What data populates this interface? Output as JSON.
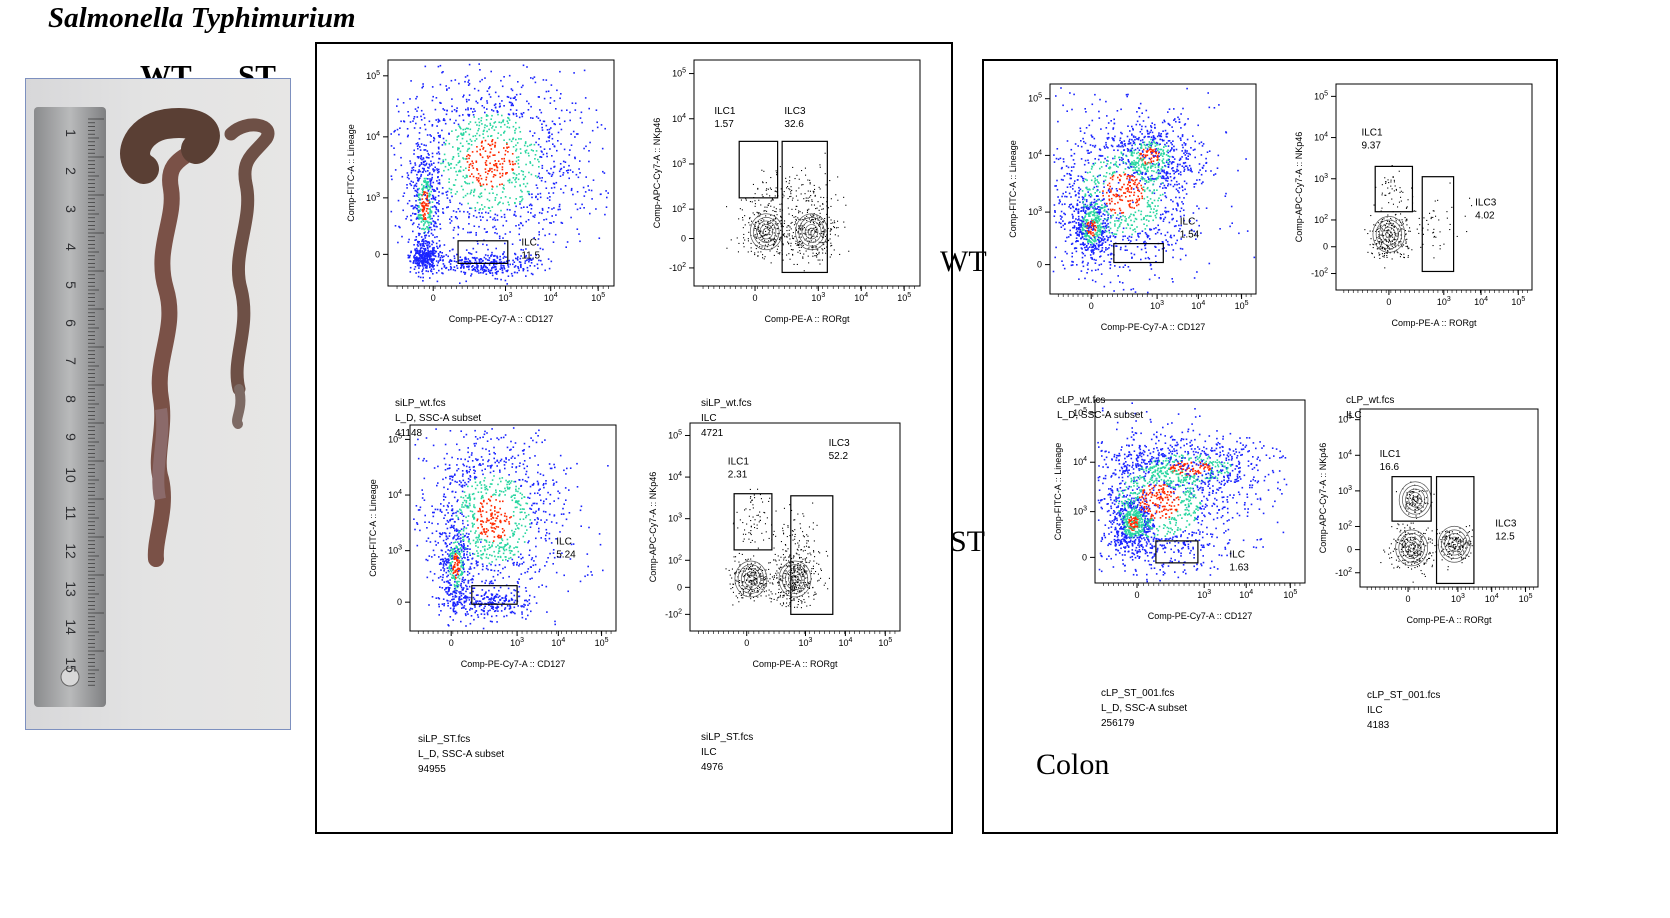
{
  "title": "Salmonella Typhimurium",
  "photo": {
    "label_wt": "WT",
    "label_st": "ST",
    "ruler_numbers": [
      "1",
      "2",
      "3",
      "4",
      "5",
      "6",
      "7",
      "8",
      "9",
      "10",
      "11",
      "12",
      "13",
      "14",
      "15"
    ]
  },
  "row_labels": {
    "wt": "WT",
    "st": "ST"
  },
  "colon_label": "Colon",
  "colors": {
    "density_low": "#1a24ff",
    "density_mid": "#29d6a0",
    "density_high": "#ff2a00",
    "frame": "#000000",
    "photo_border": "#7d90bf"
  },
  "ticks": {
    "lineage_y": [
      "10^5",
      "10^4",
      "10^3",
      "0"
    ],
    "nkp46_y": [
      "10^5",
      "10^4",
      "10^3",
      "10^2",
      "0",
      "-10^2"
    ],
    "x": [
      "0",
      "10^3",
      "10^4",
      "10^5"
    ]
  },
  "plots": [
    {
      "id": "si-wt-lin",
      "ylabel": "Comp-FITC-A :: Lineage",
      "xlabel": "Comp-PE-Cy7-A :: CD127",
      "gates": [
        {
          "name": "ILC",
          "value": "11.5"
        }
      ],
      "info": [
        "siLP_wt.fcs",
        "L_D, SSC-A subset",
        "41148"
      ]
    },
    {
      "id": "si-wt-nkp",
      "ylabel": "Comp-APC-Cy7-A :: NKp46",
      "xlabel": "Comp-PE-A :: RORgt",
      "gates": [
        {
          "name": "ILC1",
          "value": "1.57"
        },
        {
          "name": "ILC3",
          "value": "32.6"
        }
      ],
      "info": [
        "siLP_wt.fcs",
        "ILC",
        "4721"
      ]
    },
    {
      "id": "si-st-lin",
      "ylabel": "Comp-FITC-A :: Lineage",
      "xlabel": "Comp-PE-Cy7-A :: CD127",
      "gates": [
        {
          "name": "ILC",
          "value": "5.24"
        }
      ],
      "info": [
        "siLP_ST.fcs",
        "L_D, SSC-A subset",
        "94955"
      ]
    },
    {
      "id": "si-st-nkp",
      "ylabel": "Comp-APC-Cy7-A :: NKp46",
      "xlabel": "Comp-PE-A :: RORgt",
      "gates": [
        {
          "name": "ILC1",
          "value": "2.31"
        },
        {
          "name": "ILC3",
          "value": "52.2"
        }
      ],
      "info": [
        "siLP_ST.fcs",
        "ILC",
        "4976"
      ]
    },
    {
      "id": "c-wt-lin",
      "ylabel": "Comp-FITC-A :: Lineage",
      "xlabel": "Comp-PE-Cy7-A :: CD127",
      "gates": [
        {
          "name": "ILC",
          "value": "1.54"
        }
      ],
      "info": [
        "cLP_wt.fcs",
        "L_D, SSC-A subset"
      ]
    },
    {
      "id": "c-wt-nkp",
      "ylabel": "Comp-APC-Cy7-A :: NKp46",
      "xlabel": "Comp-PE-A :: RORgt",
      "gates": [
        {
          "name": "ILC1",
          "value": "9.37"
        },
        {
          "name": "ILC3",
          "value": "4.02"
        }
      ],
      "info": [
        "cLP_wt.fcs",
        "ILC"
      ]
    },
    {
      "id": "c-st-lin",
      "ylabel": "Comp-FITC-A :: Lineage",
      "xlabel": "Comp-PE-Cy7-A :: CD127",
      "gates": [
        {
          "name": "ILC",
          "value": "1.63"
        }
      ],
      "info": [
        "cLP_ST_001.fcs",
        "L_D, SSC-A subset",
        "256179"
      ]
    },
    {
      "id": "c-st-nkp",
      "ylabel": "Comp-APC-Cy7-A :: NKp46",
      "xlabel": "Comp-PE-A :: RORgt",
      "gates": [
        {
          "name": "ILC1",
          "value": "16.6"
        },
        {
          "name": "ILC3",
          "value": "12.5"
        }
      ],
      "info": [
        "cLP_ST_001.fcs",
        "ILC",
        "4183"
      ]
    }
  ]
}
